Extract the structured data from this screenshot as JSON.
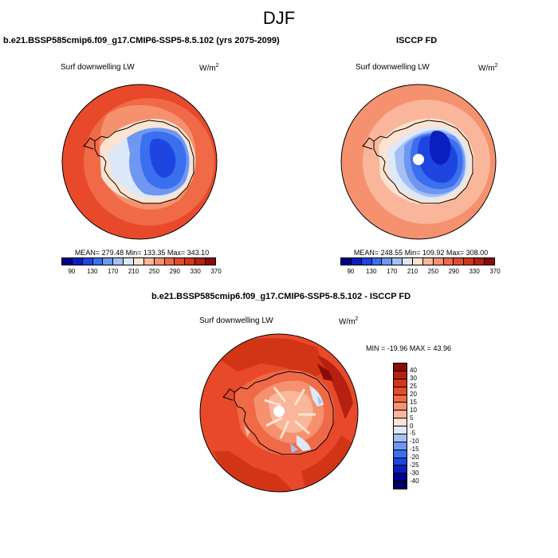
{
  "title": "DJF",
  "panels": [
    {
      "title": "b.e21.BSSP585cmip6.f09_g17.CMIP6-SSP5-8.5.102 (yrs 2075-2099)",
      "variable": "Surf downwelling LW",
      "units_base": "W/m",
      "units_exp": "2",
      "stats": "MEAN= 279.48  Min= 133.35  Max= 343.10"
    },
    {
      "title": "ISCCP FD",
      "variable": "Surf downwelling LW",
      "units_base": "W/m",
      "units_exp": "2",
      "stats": "MEAN= 248.55  Min= 109.92  Max= 308.00"
    },
    {
      "title": "b.e21.BSSP585cmip6.f09_g17.CMIP6-SSP5-8.5.102 - ISCCP FD",
      "variable": "Surf downwelling LW",
      "units_base": "W/m",
      "units_exp": "2",
      "stats": "MIN = -19.96 MAX =  43.96"
    }
  ],
  "colorbar_abs": {
    "labels": [
      "90",
      "130",
      "170",
      "210",
      "250",
      "290",
      "330",
      "370"
    ],
    "colors": [
      "#00008b",
      "#0a1fbf",
      "#1f45e0",
      "#3a6fee",
      "#6f97f2",
      "#a4c0f5",
      "#dde8f8",
      "#fde3d0",
      "#f9b69a",
      "#f5916f",
      "#f06a48",
      "#e8492b",
      "#d23516",
      "#b52010",
      "#8b0b07"
    ]
  },
  "colorbar_diff": {
    "labels": [
      "40",
      "30",
      "25",
      "20",
      "15",
      "10",
      "5",
      "0",
      "-5",
      "-10",
      "-15",
      "-20",
      "-25",
      "-30",
      "-40"
    ],
    "colors": [
      "#8b0b07",
      "#b52010",
      "#d23516",
      "#e8492b",
      "#f06a48",
      "#f5916f",
      "#f9b69a",
      "#fde3d0",
      "#dde8f8",
      "#a4c0f5",
      "#6f97f2",
      "#3a6fee",
      "#1f45e0",
      "#0a1fbf",
      "#00008b",
      "#00005e"
    ]
  }
}
